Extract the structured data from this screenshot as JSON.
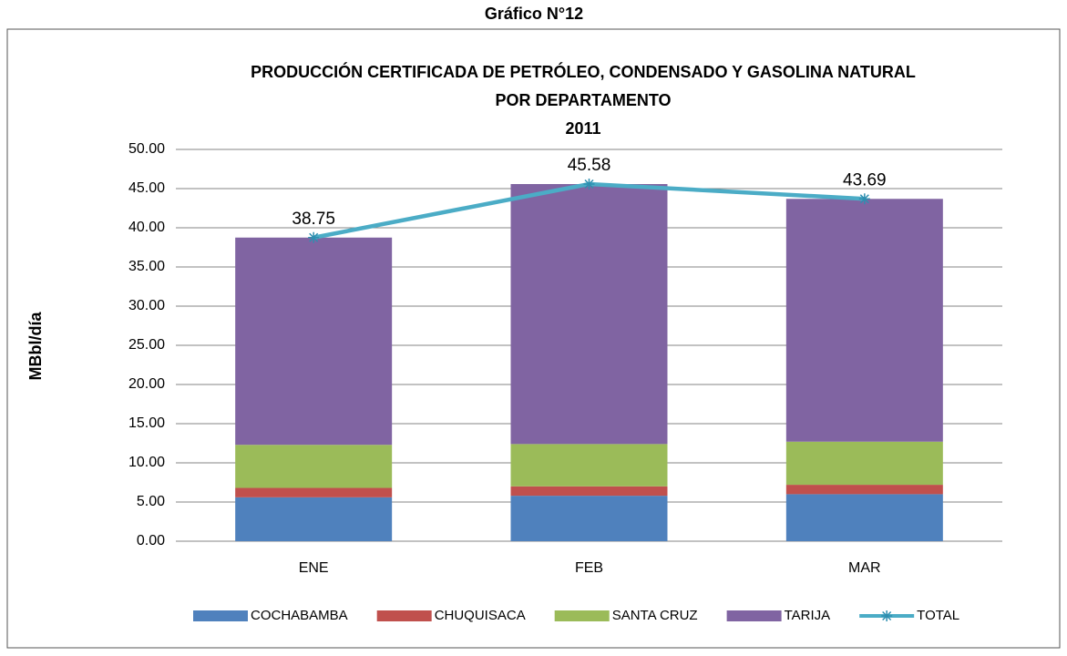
{
  "chart_data": {
    "type": "stacked_bar_line",
    "header": "Gráfico N°12",
    "title_lines": [
      "PRODUCCIÓN CERTIFICADA DE PETRÓLEO, CONDENSADO Y GASOLINA NATURAL",
      "POR DEPARTAMENTO",
      "2011"
    ],
    "ylabel": "MBbl/día",
    "categories": [
      "ENE",
      "FEB",
      "MAR"
    ],
    "series": [
      {
        "name": "COCHABAMBA",
        "color": "#4f81bd",
        "values": [
          5.6,
          5.8,
          6.0
        ]
      },
      {
        "name": "CHUQUISACA",
        "color": "#c0504d",
        "values": [
          1.2,
          1.2,
          1.2
        ]
      },
      {
        "name": "SANTA CRUZ",
        "color": "#9bbb59",
        "values": [
          5.5,
          5.4,
          5.5
        ]
      },
      {
        "name": "TARIJA",
        "color": "#8064a2",
        "values": [
          26.45,
          33.18,
          30.99
        ]
      },
      {
        "name": "TOTAL",
        "color": "#4bacc6",
        "kind": "line",
        "values": [
          38.75,
          45.58,
          43.69
        ]
      }
    ],
    "ylim": [
      0,
      50
    ],
    "yticks": [
      {
        "value": 0,
        "label": "0.00"
      },
      {
        "value": 5,
        "label": "5.00"
      },
      {
        "value": 10,
        "label": "10.00"
      },
      {
        "value": 15,
        "label": "15.00"
      },
      {
        "value": 20,
        "label": "20.00"
      },
      {
        "value": 25,
        "label": "25.00"
      },
      {
        "value": 30,
        "label": "30.00"
      },
      {
        "value": 35,
        "label": "35.00"
      },
      {
        "value": 40,
        "label": "40.00"
      },
      {
        "value": 45,
        "label": "45.00"
      },
      {
        "value": 50,
        "label": "50.00"
      }
    ],
    "grid": true,
    "legend": "bottom"
  }
}
